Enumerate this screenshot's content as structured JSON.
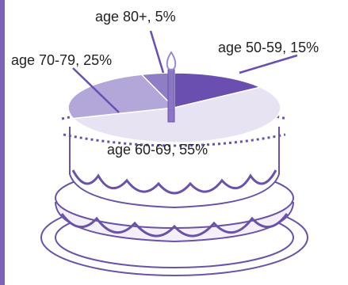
{
  "chart_data": {
    "type": "pie",
    "title": "",
    "slices": [
      {
        "label": "age 50-59, 15%",
        "value": 15,
        "color": "#6b4fb0"
      },
      {
        "label": "age 60-69, 55%",
        "value": 55,
        "color": "#e7e3f3"
      },
      {
        "label": "age 70-79, 25%",
        "value": 25,
        "color": "#b3a6d8"
      },
      {
        "label": "age 80+, 5%",
        "value": 5,
        "color": "#8f7dc6"
      }
    ],
    "start_angle_deg": 0,
    "direction": "clockwise"
  },
  "colors": {
    "border": "#7b63b6",
    "ink": "#6a52a8",
    "candle": "#8a76c4",
    "flame": "#9b89cf"
  },
  "decoration": {
    "illustration": "cake-with-candle-icon"
  }
}
